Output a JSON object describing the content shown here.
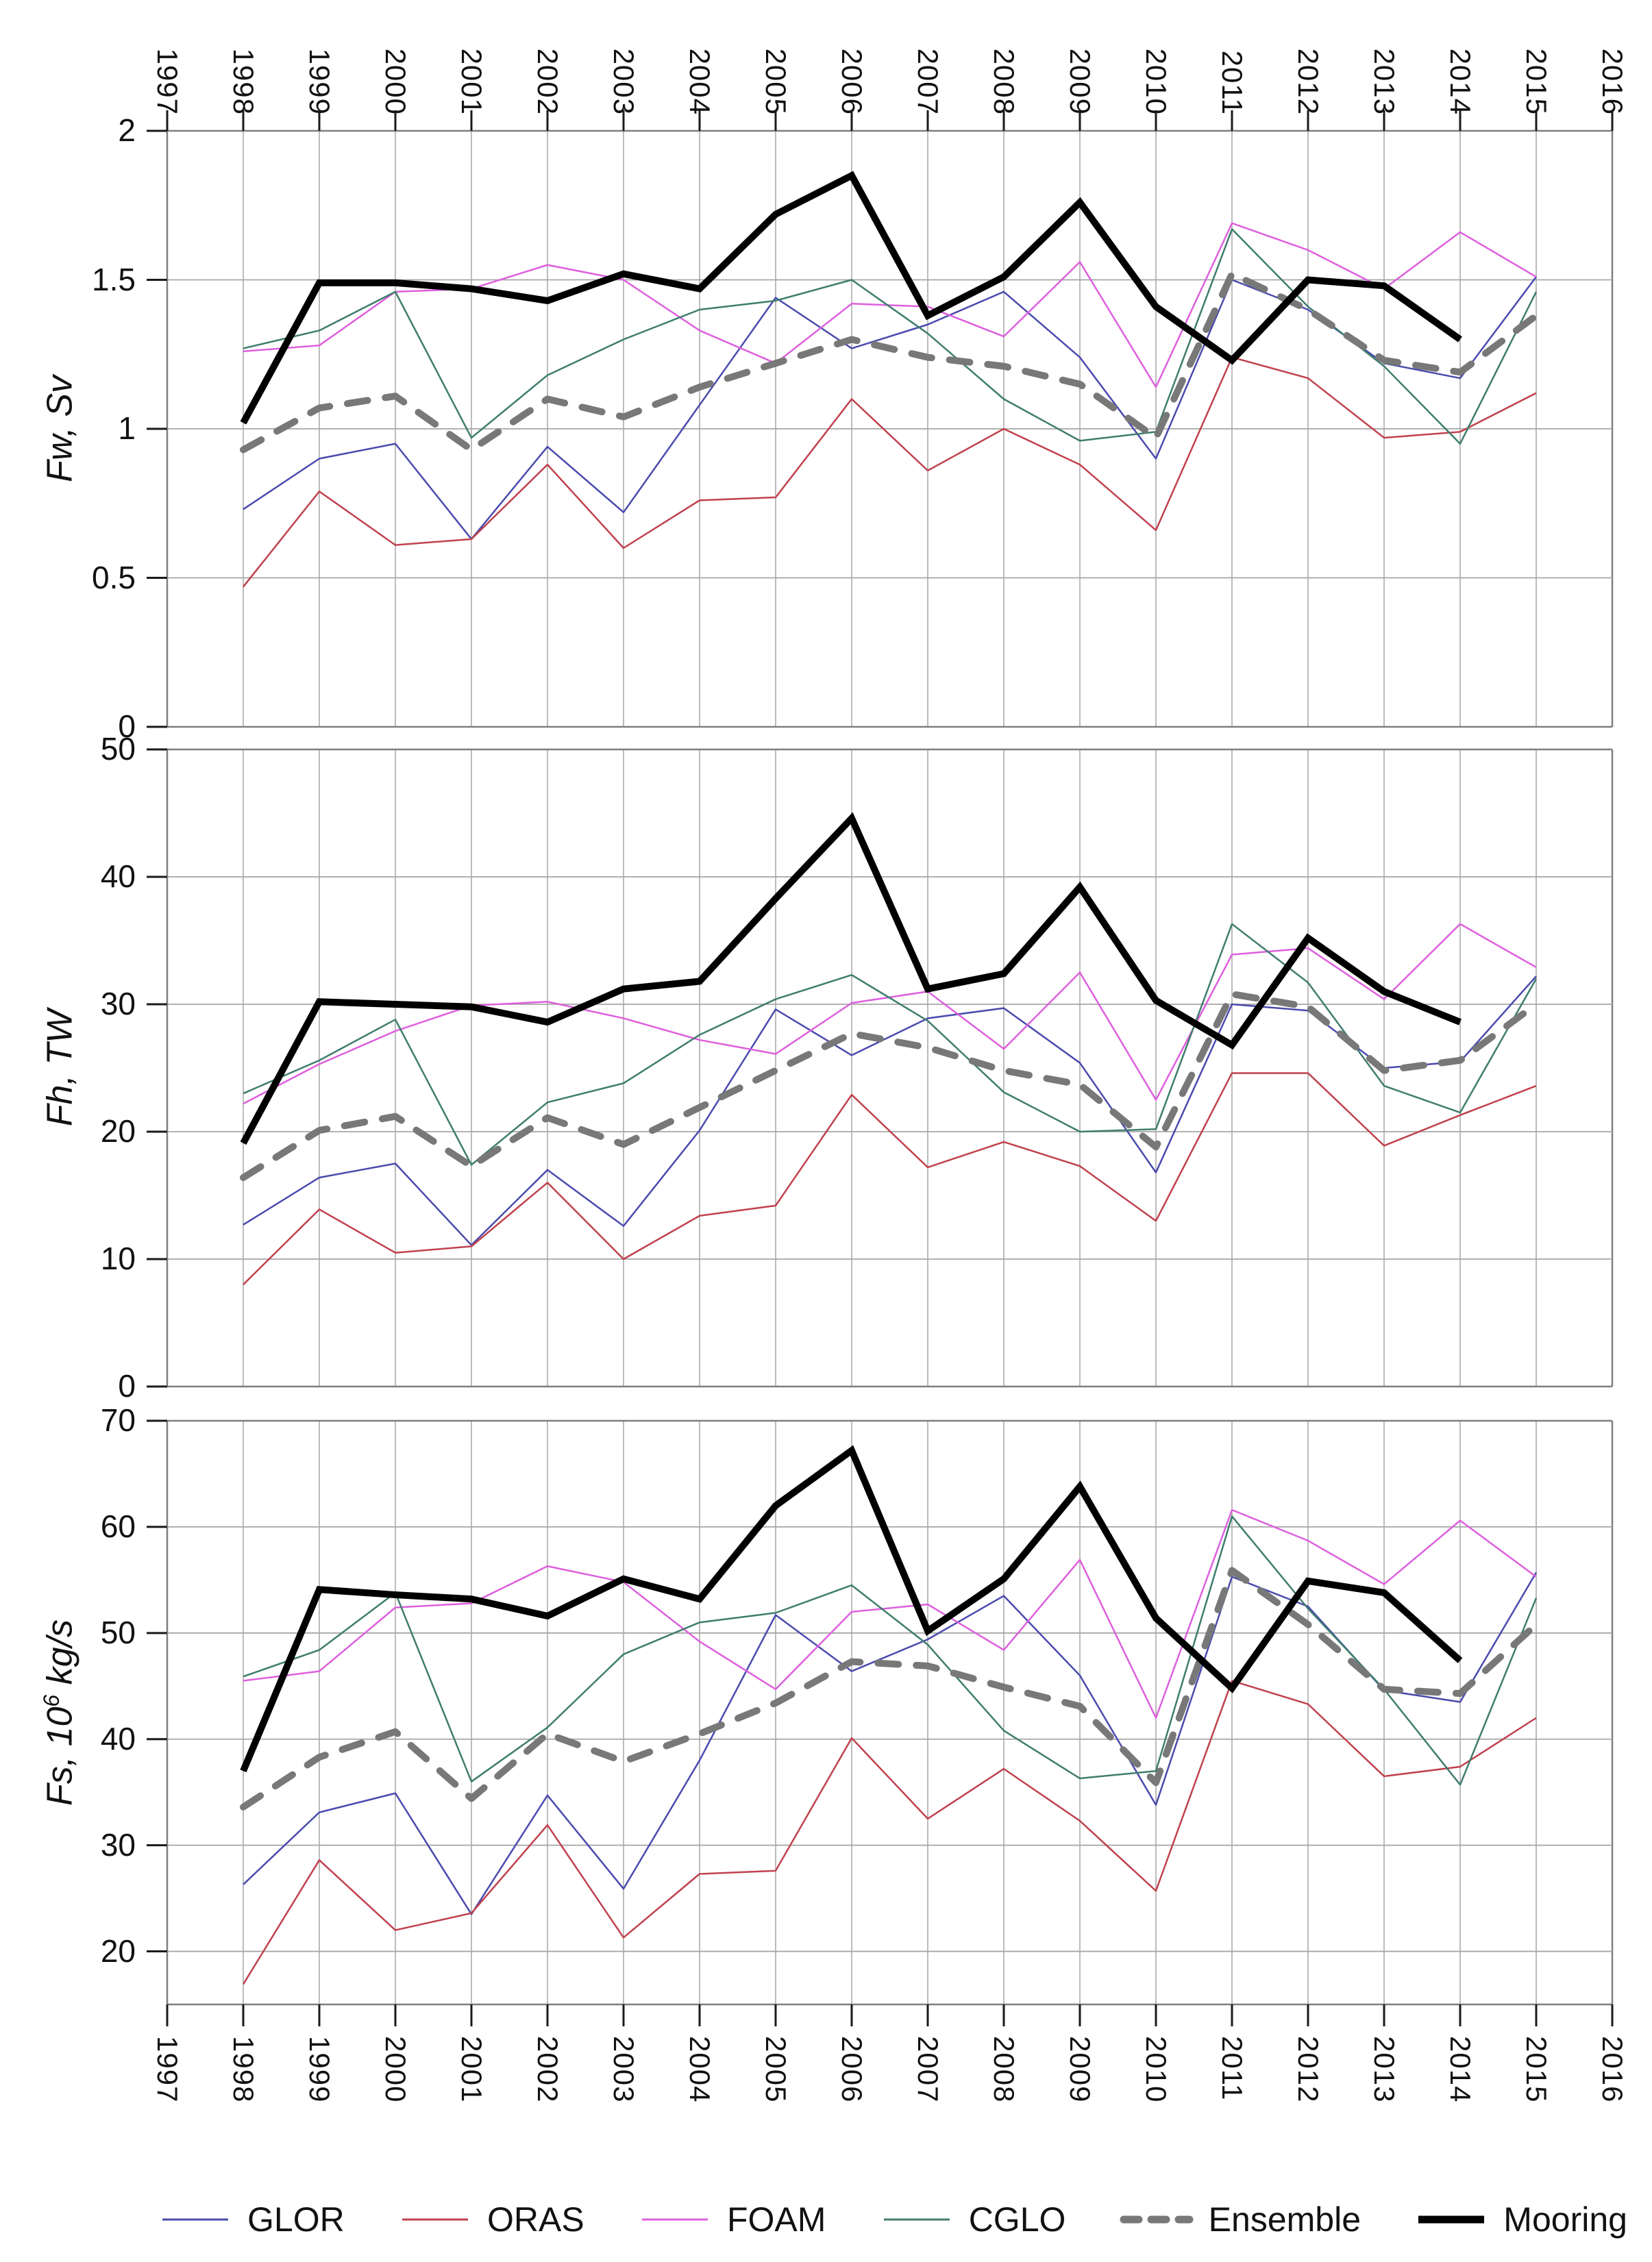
{
  "figure": {
    "top_axis_years": [
      "1997",
      "1998",
      "1999",
      "2000",
      "2001",
      "2002",
      "2003",
      "2004",
      "2005",
      "2006",
      "2007",
      "2008",
      "2009",
      "2010",
      "2011",
      "2012",
      "2013",
      "2014",
      "2015",
      "2016"
    ],
    "bottom_axis_years": [
      "1997",
      "1998",
      "1999",
      "2000",
      "2001",
      "2002",
      "2003",
      "2004",
      "2005",
      "2006",
      "2007",
      "2008",
      "2009",
      "2010",
      "2011",
      "2012",
      "2013",
      "2014",
      "2015",
      "2016"
    ],
    "axis_titles": [
      {
        "pre": "Fw, Sv",
        "sup": "",
        "post": ""
      },
      {
        "pre": "Fh, TW",
        "sup": "",
        "post": ""
      },
      {
        "pre": "Fs, 10",
        "sup": "6",
        "post": " kg/s"
      }
    ],
    "legend": [
      {
        "key": "glor",
        "label": "GLOR"
      },
      {
        "key": "oras",
        "label": "ORAS"
      },
      {
        "key": "foam",
        "label": "FOAM"
      },
      {
        "key": "cglo",
        "label": "CGLO"
      },
      {
        "key": "ensemble",
        "label": "Ensemble"
      },
      {
        "key": "mooring",
        "label": "Mooring"
      }
    ],
    "colors": {
      "glor": "#4a4aae",
      "oras": "#c0414d",
      "foam": "#de5fde",
      "cglo": "#3f7d6e",
      "ensemble": "#787878",
      "mooring": "#000000",
      "gridline": "#a6a6a6",
      "frame": "#7f7f7f",
      "tick": "#1a1a1a"
    }
  },
  "chart_data": [
    {
      "type": "line",
      "title": "",
      "ylabel": "Fw, Sv",
      "xlabel": "",
      "x": [
        1998,
        1999,
        2000,
        2001,
        2002,
        2003,
        2004,
        2005,
        2006,
        2007,
        2008,
        2009,
        2010,
        2011,
        2012,
        2013,
        2014,
        2015
      ],
      "xlim": [
        1997,
        2016
      ],
      "ylim": [
        0,
        2
      ],
      "yticks": [
        0,
        0.5,
        1,
        1.5,
        2
      ],
      "ytick_labels": [
        "0",
        "0.5",
        "1",
        "1.5",
        "2"
      ],
      "grid": true,
      "legend_position": "bottom",
      "series": [
        {
          "name": "GLOR",
          "key": "glor",
          "values": [
            0.73,
            0.9,
            0.95,
            0.63,
            0.94,
            0.72,
            1.08,
            1.44,
            1.27,
            1.35,
            1.46,
            1.24,
            0.9,
            1.5,
            1.4,
            1.22,
            1.17,
            1.51
          ]
        },
        {
          "name": "ORAS",
          "key": "oras",
          "values": [
            0.47,
            0.79,
            0.61,
            0.63,
            0.88,
            0.6,
            0.76,
            0.77,
            1.1,
            0.86,
            1.0,
            0.88,
            0.66,
            1.24,
            1.17,
            0.97,
            0.99,
            1.12
          ]
        },
        {
          "name": "FOAM",
          "key": "foam",
          "values": [
            1.26,
            1.28,
            1.46,
            1.47,
            1.55,
            1.5,
            1.33,
            1.22,
            1.42,
            1.41,
            1.31,
            1.56,
            1.14,
            1.69,
            1.6,
            1.47,
            1.66,
            1.51
          ]
        },
        {
          "name": "CGLO",
          "key": "cglo",
          "values": [
            1.27,
            1.33,
            1.46,
            0.97,
            1.18,
            1.3,
            1.4,
            1.43,
            1.5,
            1.32,
            1.1,
            0.96,
            0.99,
            1.67,
            1.41,
            1.21,
            0.95,
            1.46
          ]
        },
        {
          "name": "Ensemble",
          "key": "ensemble",
          "values": [
            0.93,
            1.07,
            1.11,
            0.93,
            1.1,
            1.04,
            1.14,
            1.22,
            1.3,
            1.24,
            1.21,
            1.15,
            0.97,
            1.52,
            1.4,
            1.23,
            1.19,
            1.38
          ]
        },
        {
          "name": "Mooring",
          "key": "mooring",
          "values": [
            1.02,
            1.49,
            1.49,
            1.47,
            1.43,
            1.52,
            1.47,
            1.72,
            1.85,
            1.38,
            1.51,
            1.76,
            1.41,
            1.23,
            1.5,
            1.48,
            1.3,
            null
          ]
        }
      ]
    },
    {
      "type": "line",
      "title": "",
      "ylabel": "Fh, TW",
      "xlabel": "",
      "x": [
        1998,
        1999,
        2000,
        2001,
        2002,
        2003,
        2004,
        2005,
        2006,
        2007,
        2008,
        2009,
        2010,
        2011,
        2012,
        2013,
        2014,
        2015
      ],
      "xlim": [
        1997,
        2016
      ],
      "ylim": [
        0,
        50
      ],
      "yticks": [
        0,
        10,
        20,
        30,
        40,
        50
      ],
      "ytick_labels": [
        "0",
        "10",
        "20",
        "30",
        "40",
        "50"
      ],
      "grid": true,
      "legend_position": "bottom",
      "series": [
        {
          "name": "GLOR",
          "key": "glor",
          "values": [
            12.7,
            16.4,
            17.5,
            11.1,
            17.0,
            12.6,
            20.1,
            29.6,
            26.0,
            28.9,
            29.7,
            25.4,
            16.8,
            30.0,
            29.5,
            25.0,
            25.5,
            32.2
          ]
        },
        {
          "name": "ORAS",
          "key": "oras",
          "values": [
            8.0,
            13.9,
            10.5,
            11.0,
            16.0,
            10.0,
            13.4,
            14.2,
            22.9,
            17.2,
            19.2,
            17.3,
            13.0,
            24.6,
            24.6,
            18.9,
            21.3,
            23.6
          ]
        },
        {
          "name": "FOAM",
          "key": "foam",
          "values": [
            22.2,
            25.3,
            27.9,
            29.9,
            30.2,
            28.9,
            27.2,
            26.1,
            30.1,
            31.0,
            26.5,
            32.5,
            22.5,
            33.9,
            34.4,
            30.4,
            36.3,
            32.9
          ]
        },
        {
          "name": "CGLO",
          "key": "cglo",
          "values": [
            23.0,
            25.6,
            28.8,
            17.4,
            22.3,
            23.8,
            27.6,
            30.4,
            32.3,
            28.7,
            23.1,
            20.0,
            20.2,
            36.3,
            31.7,
            23.6,
            21.5,
            32.0
          ]
        },
        {
          "name": "Ensemble",
          "key": "ensemble",
          "values": [
            16.4,
            20.1,
            21.2,
            17.3,
            21.1,
            19.0,
            21.9,
            24.8,
            27.7,
            26.6,
            24.8,
            23.7,
            18.8,
            30.8,
            29.8,
            24.8,
            25.6,
            30.0
          ]
        },
        {
          "name": "Mooring",
          "key": "mooring",
          "values": [
            19.1,
            30.2,
            30.0,
            29.8,
            28.6,
            31.2,
            31.8,
            38.3,
            44.6,
            31.2,
            32.4,
            39.2,
            30.3,
            26.8,
            35.2,
            31.0,
            28.6,
            null
          ]
        }
      ]
    },
    {
      "type": "line",
      "title": "",
      "ylabel": "Fs, 10^6 kg/s",
      "xlabel": "",
      "x": [
        1998,
        1999,
        2000,
        2001,
        2002,
        2003,
        2004,
        2005,
        2006,
        2007,
        2008,
        2009,
        2010,
        2011,
        2012,
        2013,
        2014,
        2015
      ],
      "xlim": [
        1997,
        2016
      ],
      "ylim": [
        15,
        70
      ],
      "yticks": [
        20,
        30,
        40,
        50,
        60,
        70
      ],
      "ytick_labels": [
        "20",
        "30",
        "40",
        "50",
        "60",
        "70"
      ],
      "grid": true,
      "legend_position": "bottom",
      "series": [
        {
          "name": "GLOR",
          "key": "glor",
          "values": [
            26.3,
            33.1,
            34.9,
            23.5,
            34.7,
            25.9,
            38.0,
            51.7,
            46.4,
            49.4,
            53.5,
            46.0,
            33.8,
            55.3,
            52.5,
            44.6,
            43.5,
            55.7
          ]
        },
        {
          "name": "ORAS",
          "key": "oras",
          "values": [
            16.9,
            28.6,
            22.0,
            23.6,
            31.9,
            21.3,
            27.3,
            27.6,
            40.1,
            32.5,
            37.2,
            32.3,
            25.7,
            45.5,
            43.3,
            36.5,
            37.4,
            42.0
          ]
        },
        {
          "name": "FOAM",
          "key": "foam",
          "values": [
            45.5,
            46.4,
            52.4,
            52.8,
            56.3,
            54.8,
            49.2,
            44.7,
            52.0,
            52.7,
            48.4,
            56.9,
            42.0,
            61.6,
            58.7,
            54.6,
            60.6,
            55.3
          ]
        },
        {
          "name": "CGLO",
          "key": "cglo",
          "values": [
            45.9,
            48.4,
            53.8,
            36.0,
            41.1,
            48.0,
            51.0,
            51.9,
            54.5,
            48.9,
            40.8,
            36.3,
            37.0,
            61.0,
            52.3,
            44.7,
            35.7,
            53.3
          ]
        },
        {
          "name": "Ensemble",
          "key": "ensemble",
          "values": [
            33.6,
            38.3,
            40.7,
            34.4,
            40.5,
            37.9,
            40.5,
            43.4,
            47.3,
            46.9,
            44.9,
            43.1,
            35.9,
            55.9,
            50.8,
            44.7,
            44.3,
            50.8
          ]
        },
        {
          "name": "Mooring",
          "key": "mooring",
          "values": [
            37.0,
            54.1,
            53.6,
            53.2,
            51.6,
            55.1,
            53.2,
            62.0,
            67.2,
            50.2,
            55.1,
            63.8,
            51.4,
            44.8,
            54.9,
            53.8,
            47.4,
            null
          ]
        }
      ]
    }
  ]
}
